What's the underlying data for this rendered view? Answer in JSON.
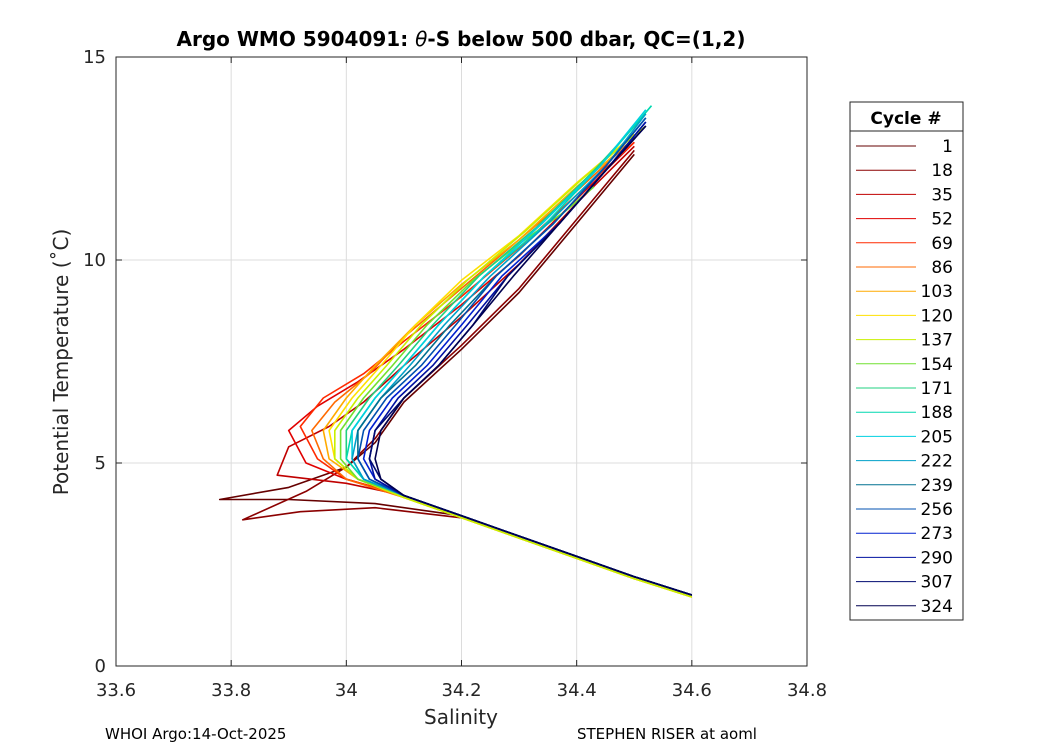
{
  "chart_data": {
    "type": "line",
    "title_prefix": "Argo WMO 5904091: ",
    "title_theta": "θ",
    "title_suffix": "-S below 500 dbar,  QC=(1,2)",
    "xlabel": "Salinity",
    "ylabel": "Potential Temperature (˚C)",
    "xlim": [
      33.6,
      34.8
    ],
    "ylim": [
      0,
      15
    ],
    "xticks": [
      33.6,
      33.8,
      34,
      34.2,
      34.4,
      34.6,
      34.8
    ],
    "xtick_labels": [
      "33.6",
      "33.8",
      "34",
      "34.2",
      "34.4",
      "34.6",
      "34.8"
    ],
    "yticks": [
      0,
      5,
      10,
      15
    ],
    "ytick_labels": [
      "0",
      "5",
      "10",
      "15"
    ],
    "grid": true,
    "legend_title": "Cycle #",
    "legend_position": "right-outside",
    "series": [
      {
        "name": "1",
        "color": "#660000",
        "x": [
          34.6,
          34.5,
          34.4,
          34.3,
          34.2,
          34.05,
          33.9,
          33.78,
          33.9,
          34.0,
          34.05,
          34.1,
          34.2,
          34.3,
          34.4,
          34.5
        ],
        "y": [
          1.75,
          2.2,
          2.7,
          3.2,
          3.7,
          4.0,
          4.1,
          4.1,
          4.4,
          4.9,
          5.5,
          6.5,
          7.8,
          9.2,
          10.9,
          12.6
        ]
      },
      {
        "name": "18",
        "color": "#8b0000",
        "x": [
          34.6,
          34.5,
          34.4,
          34.3,
          34.2,
          34.05,
          33.92,
          33.82,
          33.93,
          34.0,
          34.05,
          34.1,
          34.2,
          34.3,
          34.4,
          34.5
        ],
        "y": [
          1.75,
          2.2,
          2.7,
          3.2,
          3.65,
          3.9,
          3.8,
          3.6,
          4.3,
          4.9,
          5.6,
          6.6,
          7.9,
          9.3,
          11.0,
          12.7
        ]
      },
      {
        "name": "35",
        "color": "#c00000",
        "x": [
          34.6,
          34.5,
          34.4,
          34.3,
          34.2,
          34.1,
          34.0,
          33.88,
          33.9,
          33.97,
          34.03,
          34.1,
          34.2,
          34.3,
          34.4,
          34.5
        ],
        "y": [
          1.75,
          2.2,
          2.7,
          3.2,
          3.7,
          4.2,
          4.5,
          4.7,
          5.4,
          5.9,
          6.5,
          7.4,
          8.6,
          9.9,
          11.4,
          12.8
        ]
      },
      {
        "name": "52",
        "color": "#e00000",
        "x": [
          34.6,
          34.5,
          34.4,
          34.3,
          34.2,
          34.1,
          34.0,
          33.93,
          33.9,
          33.95,
          34.02,
          34.1,
          34.2,
          34.3,
          34.4,
          34.5
        ],
        "y": [
          1.75,
          2.2,
          2.7,
          3.2,
          3.7,
          4.2,
          4.6,
          5.0,
          5.8,
          6.4,
          7.0,
          7.8,
          8.9,
          10.1,
          11.5,
          12.9
        ]
      },
      {
        "name": "69",
        "color": "#ff2a00",
        "x": [
          34.6,
          34.5,
          34.4,
          34.3,
          34.2,
          34.1,
          34.0,
          33.95,
          33.92,
          33.96,
          34.03,
          34.1,
          34.2,
          34.3,
          34.4,
          34.5
        ],
        "y": [
          1.75,
          2.2,
          2.7,
          3.2,
          3.7,
          4.2,
          4.6,
          5.1,
          5.9,
          6.6,
          7.2,
          8.0,
          9.1,
          10.3,
          11.6,
          12.9
        ]
      },
      {
        "name": "86",
        "color": "#ff6a00",
        "x": [
          34.6,
          34.5,
          34.4,
          34.3,
          34.2,
          34.1,
          34.0,
          33.96,
          33.94,
          33.98,
          34.04,
          34.1,
          34.2,
          34.3,
          34.4,
          34.5
        ],
        "y": [
          1.7,
          2.15,
          2.65,
          3.15,
          3.65,
          4.15,
          4.6,
          5.1,
          5.8,
          6.5,
          7.2,
          8.1,
          9.3,
          10.5,
          11.7,
          13.0
        ]
      },
      {
        "name": "103",
        "color": "#ffaa00",
        "x": [
          34.6,
          34.5,
          34.4,
          34.3,
          34.2,
          34.1,
          34.02,
          33.97,
          33.96,
          34.0,
          34.05,
          34.12,
          34.2,
          34.3,
          34.4,
          34.5
        ],
        "y": [
          1.7,
          2.15,
          2.65,
          3.15,
          3.65,
          4.15,
          4.6,
          5.1,
          5.8,
          6.6,
          7.4,
          8.4,
          9.4,
          10.5,
          11.8,
          13.0
        ]
      },
      {
        "name": "120",
        "color": "#ffe000",
        "x": [
          34.6,
          34.5,
          34.4,
          34.3,
          34.2,
          34.1,
          34.02,
          33.98,
          33.97,
          34.01,
          34.06,
          34.12,
          34.2,
          34.3,
          34.4,
          34.5
        ],
        "y": [
          1.7,
          2.15,
          2.65,
          3.15,
          3.65,
          4.15,
          4.6,
          5.1,
          5.8,
          6.6,
          7.4,
          8.4,
          9.5,
          10.6,
          11.9,
          13.1
        ]
      },
      {
        "name": "137",
        "color": "#c8f000",
        "x": [
          34.6,
          34.5,
          34.4,
          34.3,
          34.2,
          34.1,
          34.02,
          33.98,
          33.98,
          34.02,
          34.07,
          34.13,
          34.21,
          34.31,
          34.41,
          34.52
        ],
        "y": [
          1.7,
          2.15,
          2.65,
          3.15,
          3.65,
          4.15,
          4.6,
          5.1,
          5.8,
          6.6,
          7.4,
          8.4,
          9.5,
          10.7,
          12.0,
          13.3
        ]
      },
      {
        "name": "154",
        "color": "#70e030",
        "x": [
          34.6,
          34.5,
          34.4,
          34.3,
          34.2,
          34.1,
          34.02,
          33.99,
          33.99,
          34.03,
          34.08,
          34.14,
          34.22,
          34.3,
          34.38,
          34.43
        ],
        "y": [
          1.75,
          2.2,
          2.7,
          3.2,
          3.7,
          4.2,
          4.6,
          5.1,
          5.8,
          6.6,
          7.4,
          8.4,
          9.5,
          10.4,
          11.2,
          11.8
        ]
      },
      {
        "name": "171",
        "color": "#20d080",
        "x": [
          34.6,
          34.5,
          34.4,
          34.3,
          34.2,
          34.1,
          34.03,
          34.0,
          34.0,
          34.04,
          34.09,
          34.15,
          34.23,
          34.33,
          34.43,
          34.52
        ],
        "y": [
          1.75,
          2.2,
          2.7,
          3.2,
          3.7,
          4.2,
          4.6,
          5.1,
          5.8,
          6.6,
          7.4,
          8.4,
          9.6,
          10.8,
          12.2,
          13.6
        ]
      },
      {
        "name": "188",
        "color": "#00d8b0",
        "x": [
          34.6,
          34.5,
          34.4,
          34.3,
          34.2,
          34.1,
          34.03,
          34.0,
          34.01,
          34.05,
          34.1,
          34.16,
          34.24,
          34.34,
          34.44,
          34.53
        ],
        "y": [
          1.75,
          2.2,
          2.7,
          3.2,
          3.7,
          4.2,
          4.6,
          5.1,
          5.8,
          6.6,
          7.4,
          8.4,
          9.6,
          10.8,
          12.3,
          13.8
        ]
      },
      {
        "name": "205",
        "color": "#00d0e0",
        "x": [
          34.6,
          34.5,
          34.4,
          34.3,
          34.2,
          34.1,
          34.03,
          34.01,
          34.01,
          34.05,
          34.1,
          34.16,
          34.24,
          34.34,
          34.44,
          34.52
        ],
        "y": [
          1.75,
          2.2,
          2.7,
          3.2,
          3.7,
          4.2,
          4.6,
          5.1,
          5.8,
          6.6,
          7.4,
          8.4,
          9.6,
          10.9,
          12.3,
          13.7
        ]
      },
      {
        "name": "222",
        "color": "#00a0c8",
        "x": [
          34.6,
          34.5,
          34.4,
          34.3,
          34.2,
          34.1,
          34.03,
          34.01,
          34.02,
          34.06,
          34.11,
          34.17,
          34.25,
          34.35,
          34.45,
          34.52
        ],
        "y": [
          1.75,
          2.2,
          2.7,
          3.2,
          3.7,
          4.2,
          4.6,
          5.1,
          5.8,
          6.6,
          7.4,
          8.4,
          9.6,
          10.9,
          12.3,
          13.6
        ]
      },
      {
        "name": "239",
        "color": "#007090",
        "x": [
          34.6,
          34.5,
          34.4,
          34.3,
          34.2,
          34.1,
          34.04,
          34.02,
          34.02,
          34.06,
          34.12,
          34.18,
          34.26,
          34.36,
          34.45,
          34.52
        ],
        "y": [
          1.75,
          2.2,
          2.7,
          3.2,
          3.7,
          4.2,
          4.6,
          5.1,
          5.8,
          6.6,
          7.4,
          8.4,
          9.6,
          10.9,
          12.3,
          13.5
        ]
      },
      {
        "name": "256",
        "color": "#0050b0",
        "x": [
          34.6,
          34.5,
          34.4,
          34.3,
          34.2,
          34.1,
          34.04,
          34.02,
          34.03,
          34.07,
          34.13,
          34.19,
          34.26,
          34.36,
          34.45,
          34.52
        ],
        "y": [
          1.75,
          2.2,
          2.7,
          3.2,
          3.7,
          4.2,
          4.6,
          5.1,
          5.8,
          6.6,
          7.4,
          8.4,
          9.6,
          10.9,
          12.3,
          13.5
        ]
      },
      {
        "name": "273",
        "color": "#0020d0",
        "x": [
          34.6,
          34.5,
          34.4,
          34.3,
          34.2,
          34.1,
          34.05,
          34.03,
          34.04,
          34.08,
          34.14,
          34.2,
          34.27,
          34.37,
          34.45,
          34.52
        ],
        "y": [
          1.75,
          2.2,
          2.7,
          3.2,
          3.7,
          4.2,
          4.6,
          5.1,
          5.8,
          6.6,
          7.4,
          8.4,
          9.6,
          10.9,
          12.2,
          13.4
        ]
      },
      {
        "name": "290",
        "color": "#0010a0",
        "x": [
          34.6,
          34.5,
          34.4,
          34.3,
          34.2,
          34.1,
          34.05,
          34.04,
          34.05,
          34.09,
          34.15,
          34.21,
          34.28,
          34.37,
          34.45,
          34.52
        ],
        "y": [
          1.75,
          2.2,
          2.7,
          3.2,
          3.7,
          4.2,
          4.6,
          5.1,
          5.8,
          6.6,
          7.4,
          8.4,
          9.6,
          10.9,
          12.2,
          13.4
        ]
      },
      {
        "name": "307",
        "color": "#000a70",
        "x": [
          34.6,
          34.5,
          34.4,
          34.3,
          34.2,
          34.1,
          34.06,
          34.04,
          34.05,
          34.1,
          34.16,
          34.22,
          34.28,
          34.37,
          34.45,
          34.52
        ],
        "y": [
          1.75,
          2.2,
          2.7,
          3.2,
          3.7,
          4.2,
          4.6,
          5.1,
          5.8,
          6.6,
          7.4,
          8.4,
          9.6,
          10.9,
          12.2,
          13.3
        ]
      },
      {
        "name": "324",
        "color": "#000050",
        "x": [
          34.6,
          34.5,
          34.4,
          34.3,
          34.2,
          34.1,
          34.06,
          34.05,
          34.06,
          34.1,
          34.16,
          34.22,
          34.29,
          34.37,
          34.45,
          34.52
        ],
        "y": [
          1.75,
          2.2,
          2.7,
          3.2,
          3.7,
          4.2,
          4.6,
          5.1,
          5.8,
          6.6,
          7.4,
          8.4,
          9.6,
          10.9,
          12.2,
          13.3
        ]
      }
    ]
  },
  "footer": {
    "left": "WHOI Argo:14-Oct-2025",
    "right": "STEPHEN RISER at aoml"
  }
}
